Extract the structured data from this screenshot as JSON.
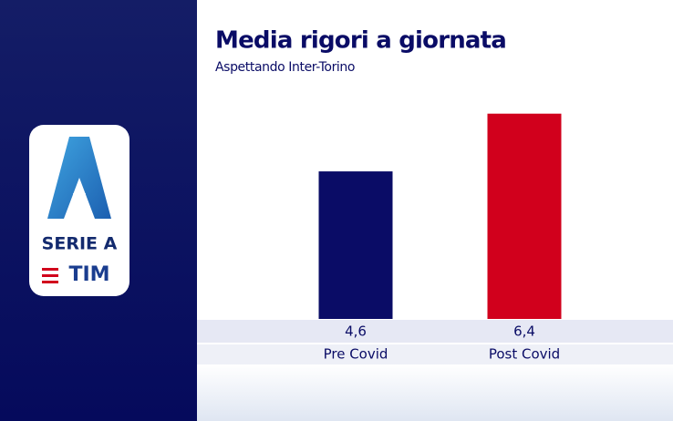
{
  "logo": {
    "name": "SERIE A",
    "sponsor": "TIM"
  },
  "chart_data": {
    "type": "bar",
    "title": "Media rigori a giornata",
    "subtitle": "Aspettando Inter-Torino",
    "categories": [
      "Pre Covid",
      "Post Covid"
    ],
    "values": [
      4.6,
      6.4
    ],
    "value_labels": [
      "4,6",
      "6,4"
    ],
    "colors": [
      "#0a0c66",
      "#d1001c"
    ]
  }
}
